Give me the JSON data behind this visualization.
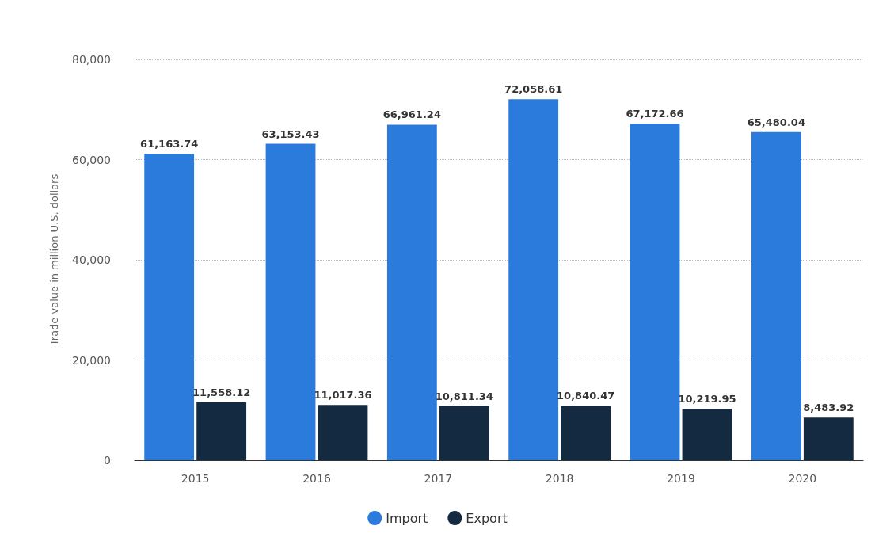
{
  "chart_data": {
    "type": "bar",
    "ylabel": "Trade value in million U.S. dollars",
    "categories": [
      "2015",
      "2016",
      "2017",
      "2018",
      "2019",
      "2020"
    ],
    "series": [
      {
        "name": "Import",
        "color": "#2b7bdd",
        "values": [
          61163.74,
          63153.43,
          66961.24,
          72058.61,
          67172.66,
          65480.04
        ],
        "value_labels": [
          "61,163.74",
          "63,153.43",
          "66,961.24",
          "72,058.61",
          "67,172.66",
          "65,480.04"
        ]
      },
      {
        "name": "Export",
        "color": "#142a40",
        "values": [
          11558.12,
          11017.36,
          10811.34,
          10840.47,
          10219.95,
          8483.92
        ],
        "value_labels": [
          "11,558.12",
          "11,017.36",
          "10,811.34",
          "10,840.47",
          "10,219.95",
          "8,483.92"
        ]
      }
    ],
    "ylim": [
      0,
      80000
    ],
    "yticks": [
      0,
      {
        "value": 20000,
        "label": "20,000"
      },
      {
        "value": 40000,
        "label": "40,000"
      },
      {
        "value": 60000,
        "label": "60,000"
      },
      {
        "value": 80000,
        "label": "80,000"
      }
    ],
    "grid": "y",
    "legend": "bottom"
  }
}
